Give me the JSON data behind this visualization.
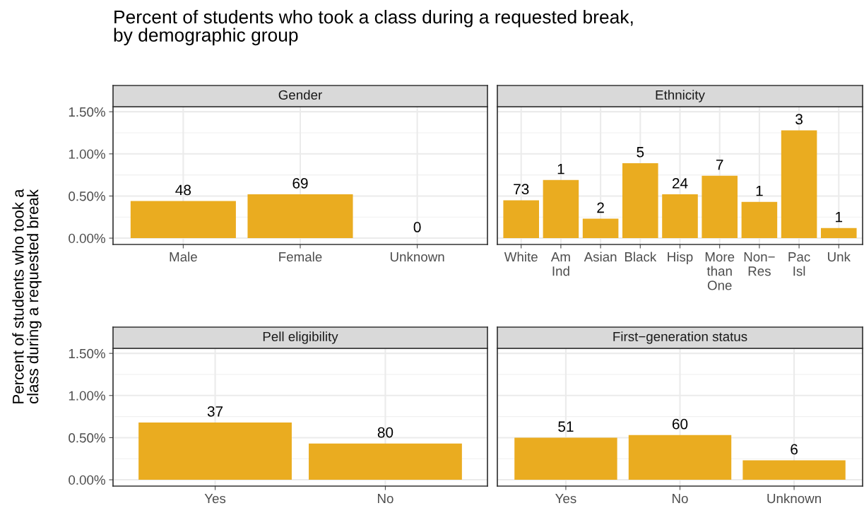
{
  "chart_data": [
    {
      "type": "bar",
      "title": "Gender",
      "ylabel": "Percent of students who took a\nclass during a requested break",
      "categories": [
        "Male",
        "Female",
        "Unknown"
      ],
      "values": [
        0.44,
        0.52,
        0
      ],
      "color": "#eaac20",
      "ylim": [
        -0.075,
        1.56
      ],
      "yticks": [
        {
          "value": 0,
          "label": "0.00%"
        },
        {
          "value": 0.5,
          "label": "0.50%"
        },
        {
          "value": 1.0,
          "label": "1.00%"
        },
        {
          "value": 1.5,
          "label": "1.50%"
        }
      ],
      "grid": true,
      "annotations": [
        "Percent of students who took a class during a requested break,\nby demographic group",
        {
          "text": "48",
          "x": "Male",
          "y": 0.44
        },
        {
          "text": "69",
          "x": "Female",
          "y": 0.52
        },
        {
          "text": "0",
          "x": "Unknown",
          "y": 0
        }
      ]
    },
    {
      "type": "bar",
      "title": "Ethnicity",
      "categories": [
        "White",
        "Am\nInd",
        "Asian",
        "Black",
        "Hisp",
        "More\nthan\nOne",
        "Non−\nRes",
        "Pac\nIsl",
        "Unk"
      ],
      "values": [
        0.45,
        0.69,
        0.23,
        0.89,
        0.52,
        0.74,
        0.43,
        1.28,
        0.12
      ],
      "color": "#eaac20",
      "ylim": [
        -0.075,
        1.56
      ],
      "yticks": [
        0,
        0.5,
        1.0,
        1.5
      ],
      "grid": true,
      "tick_labels": "x",
      "annotations": [
        {
          "text": "73",
          "x": "White",
          "y": 0.45
        },
        {
          "text": "1",
          "x": "Am\nInd",
          "y": 0.69
        },
        {
          "text": "2",
          "x": "Asian",
          "y": 0.23
        },
        {
          "text": "5",
          "x": "Black",
          "y": 0.89
        },
        {
          "text": "24",
          "x": "Hisp",
          "y": 0.52
        },
        {
          "text": "7",
          "x": "More\nthan\nOne",
          "y": 0.74
        },
        {
          "text": "1",
          "x": "Non−\nRes",
          "y": 0.43
        },
        {
          "text": "3",
          "x": "Pac\nIsl",
          "y": 1.28
        },
        {
          "text": "1",
          "x": "Unk",
          "y": 0.12
        }
      ]
    },
    {
      "type": "bar",
      "title": "Pell eligibility",
      "categories": [
        "Yes",
        "No"
      ],
      "values": [
        0.68,
        0.43
      ],
      "color": "#eaac20",
      "ylim": [
        -0.075,
        1.56
      ],
      "yticks": [
        {
          "value": 0,
          "label": "0.00%"
        },
        {
          "value": 0.5,
          "label": "0.50%"
        },
        {
          "value": 1.0,
          "label": "1.00%"
        },
        {
          "value": 1.5,
          "label": "1.50%"
        }
      ],
      "grid": true,
      "annotations": [
        {
          "text": "37",
          "x": "Yes",
          "y": 0.68
        },
        {
          "text": "80",
          "x": "No",
          "y": 0.43
        }
      ]
    },
    {
      "type": "bar",
      "title": "First−generation status",
      "categories": [
        "Yes",
        "No",
        "Unknown"
      ],
      "values": [
        0.5,
        0.53,
        0.23
      ],
      "color": "#eaac20",
      "ylim": [
        -0.075,
        1.56
      ],
      "yticks": [
        0,
        0.5,
        1.0,
        1.5
      ],
      "grid": true,
      "tick_labels": "x",
      "annotations": [
        {
          "text": "51",
          "x": "Yes",
          "y": 0.5
        },
        {
          "text": "60",
          "x": "No",
          "y": 0.53
        },
        {
          "text": "6",
          "x": "Unknown",
          "y": 0.23
        }
      ]
    }
  ]
}
